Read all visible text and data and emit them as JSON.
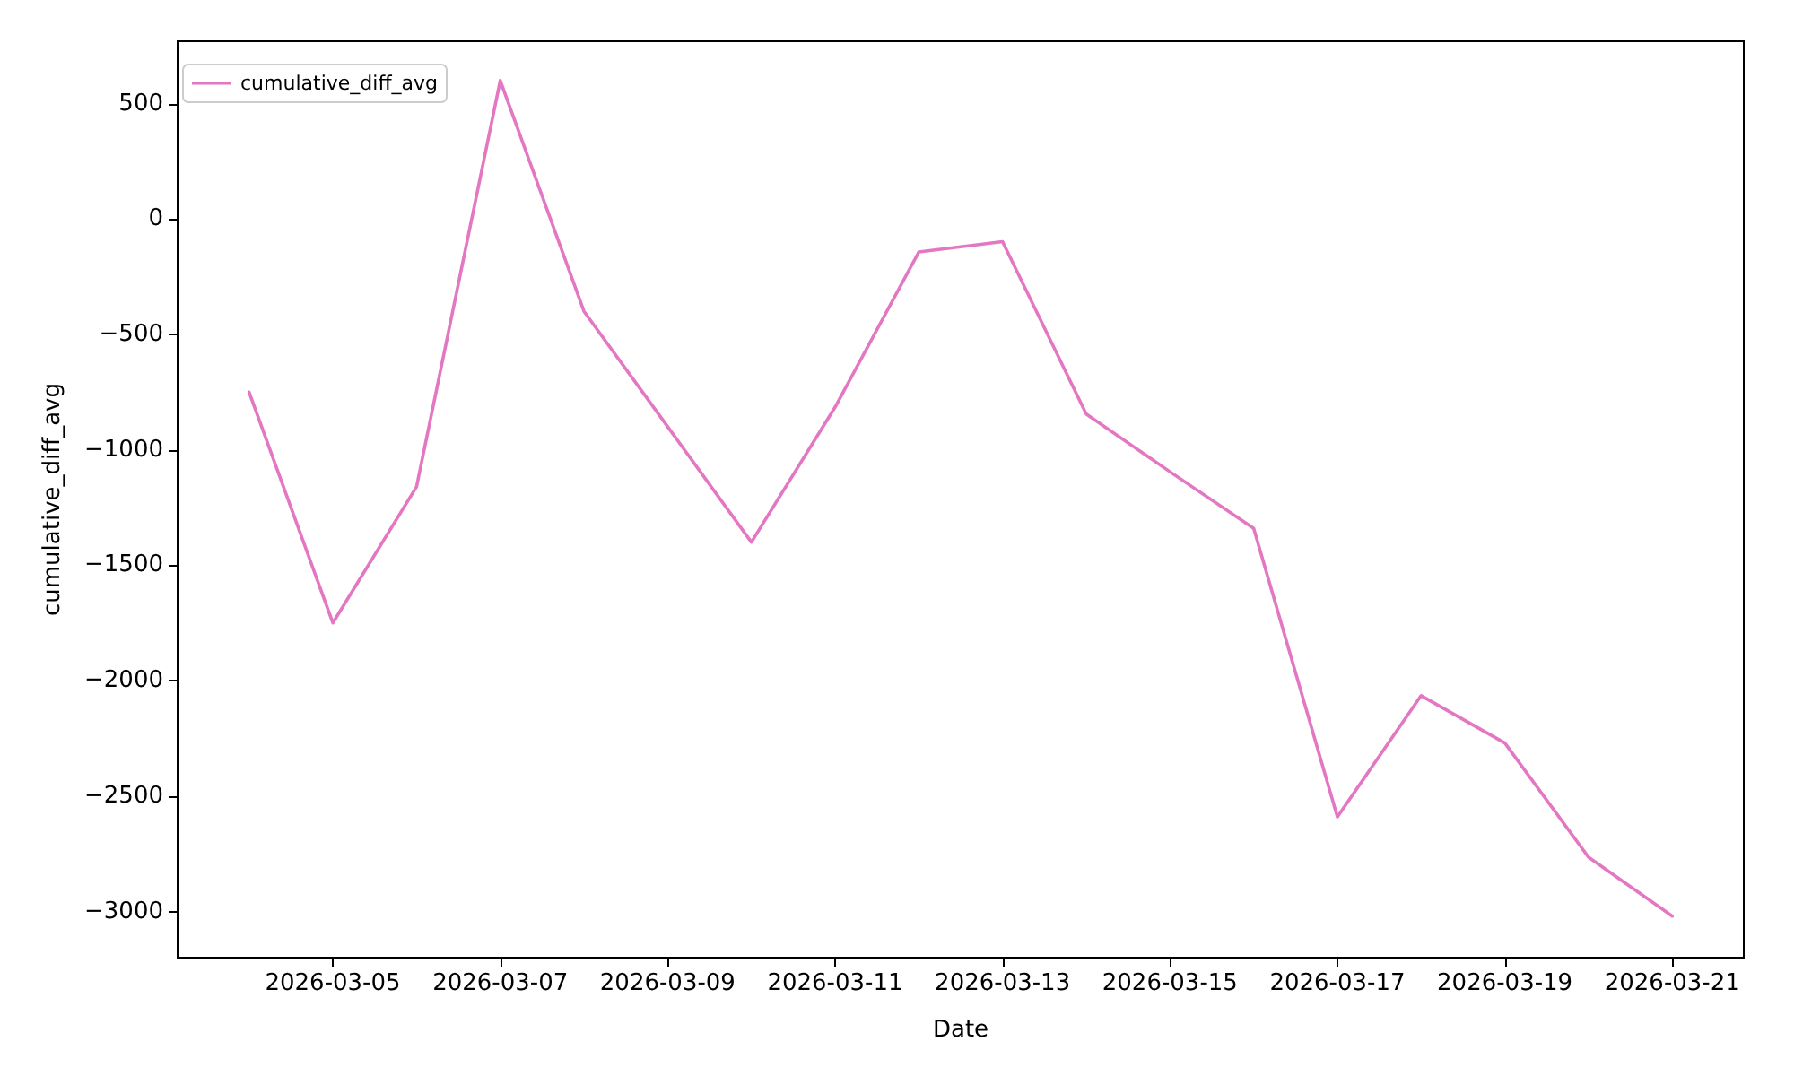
{
  "chart_data": {
    "type": "line",
    "xlabel": "Date",
    "ylabel": "cumulative_diff_avg",
    "x": [
      "2026-03-04",
      "2026-03-05",
      "2026-03-06",
      "2026-03-07",
      "2026-03-08",
      "2026-03-09",
      "2026-03-10",
      "2026-03-11",
      "2026-03-12",
      "2026-03-13",
      "2026-03-14",
      "2026-03-15",
      "2026-03-16",
      "2026-03-17",
      "2026-03-18",
      "2026-03-19",
      "2026-03-20",
      "2026-03-21"
    ],
    "series": [
      {
        "name": "cumulative_diff_avg",
        "color": "#e377c2",
        "values": [
          -750,
          -1750,
          -1160,
          600,
          -400,
          -900,
          -1400,
          -815,
          -143,
          -98,
          -845,
          -1095,
          -1340,
          -2590,
          -2065,
          -2270,
          -2765,
          -3020
        ]
      }
    ],
    "xlim": [
      "2026-03-03T03:30",
      "2026-03-21T20:30"
    ],
    "xticks": [
      "2026-03-05",
      "2026-03-07",
      "2026-03-09",
      "2026-03-11",
      "2026-03-13",
      "2026-03-15",
      "2026-03-17",
      "2026-03-19",
      "2026-03-21"
    ],
    "ylim": [
      -3200,
      770
    ],
    "yticks": [
      -3000,
      -2500,
      -2000,
      -1500,
      -1000,
      -500,
      0,
      500
    ],
    "grid": false,
    "legend": "top left",
    "marker": "none",
    "line_style": "solid"
  }
}
